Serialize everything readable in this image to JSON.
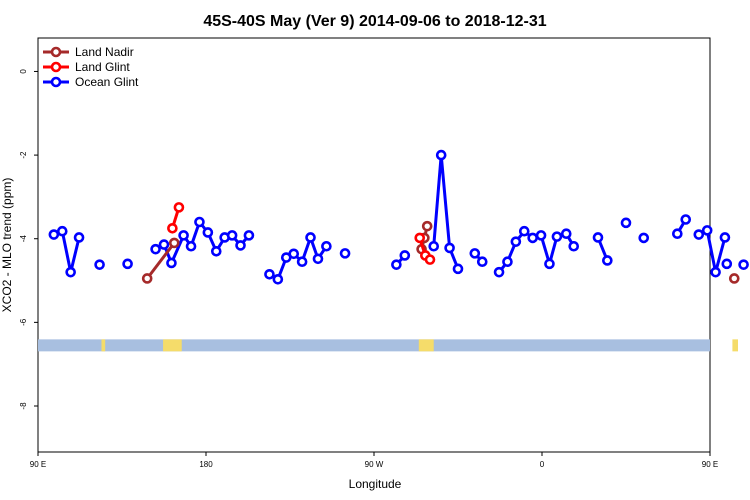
{
  "chart_data": {
    "type": "line",
    "title": "45S-40S May (Ver 9)   2014-09-06 to 2018-12-31",
    "xlabel": "Longitude",
    "ylabel": "XCO2 - MLO trend (ppm)",
    "xlim": [
      90,
      450
    ],
    "ylim": [
      -9.1,
      0.8
    ],
    "x_ticks": [
      {
        "value": 90,
        "label": "90 E"
      },
      {
        "value": 180,
        "label": "180"
      },
      {
        "value": 270,
        "label": "90 W"
      },
      {
        "value": 360,
        "label": "0"
      },
      {
        "value": 450,
        "label": "90 E"
      },
      {
        "value": 540,
        "label": "180"
      }
    ],
    "y_ticks": [
      {
        "value": 0,
        "label": "0"
      },
      {
        "value": -2,
        "label": "-2"
      },
      {
        "value": -4,
        "label": "-4"
      },
      {
        "value": -6,
        "label": "-6"
      },
      {
        "value": -8,
        "label": "-8"
      }
    ],
    "legend_position": "top-left",
    "grid": false,
    "map_strip": {
      "y": -6.55,
      "ocean_color": "#a8bfe0",
      "land_color": "#f5dc6a"
    },
    "series": [
      {
        "name": "Land Nadir",
        "color": "#a52a2a",
        "segments": [
          [
            [
              148.5,
              -4.95
            ],
            [
              163,
              -4.1
            ]
          ],
          [
            [
              295.5,
              -4.25
            ],
            [
              297,
              -3.98
            ],
            [
              298.5,
              -3.7
            ]
          ],
          [
            [
              463,
              -4.95
            ]
          ]
        ]
      },
      {
        "name": "Land Glint",
        "color": "#ff0000",
        "segments": [
          [
            [
              162,
              -3.75
            ],
            [
              165.5,
              -3.25
            ]
          ],
          [
            [
              294.5,
              -3.98
            ],
            [
              297.5,
              -4.4
            ],
            [
              300,
              -4.5
            ]
          ],
          [
            [
              478,
              -3.78
            ],
            [
              482,
              -3.25
            ]
          ]
        ]
      },
      {
        "name": "Ocean Glint",
        "color": "#0000ff",
        "segments": [
          [
            [
              98.5,
              -3.9
            ],
            [
              103,
              -3.82
            ],
            [
              107.5,
              -4.8
            ],
            [
              112,
              -3.97
            ]
          ],
          [
            [
              123,
              -4.62
            ]
          ],
          [
            [
              138,
              -4.6
            ]
          ],
          [
            [
              153,
              -4.25
            ],
            [
              157.5,
              -4.14
            ],
            [
              161.5,
              -4.58
            ],
            [
              168,
              -3.92
            ],
            [
              172,
              -4.18
            ],
            [
              176.5,
              -3.6
            ],
            [
              181,
              -3.85
            ],
            [
              185.5,
              -4.3
            ],
            [
              190,
              -3.97
            ],
            [
              194,
              -3.92
            ],
            [
              198.5,
              -4.16
            ],
            [
              203,
              -3.92
            ]
          ],
          [
            [
              214,
              -4.85
            ],
            [
              218.5,
              -4.97
            ],
            [
              223,
              -4.45
            ],
            [
              227,
              -4.36
            ],
            [
              231.5,
              -4.55
            ],
            [
              236,
              -3.97
            ],
            [
              240,
              -4.48
            ],
            [
              244.5,
              -4.18
            ]
          ],
          [
            [
              254.5,
              -4.35
            ]
          ],
          [
            [
              282,
              -4.62
            ],
            [
              286.5,
              -4.4
            ]
          ],
          [
            [
              302,
              -4.18
            ],
            [
              306,
              -2.0
            ],
            [
              310.5,
              -4.22
            ],
            [
              315,
              -4.72
            ]
          ],
          [
            [
              324,
              -4.35
            ],
            [
              328,
              -4.55
            ]
          ],
          [
            [
              337,
              -4.8
            ],
            [
              341.5,
              -4.55
            ],
            [
              346,
              -4.07
            ],
            [
              350.5,
              -3.82
            ],
            [
              355,
              -3.98
            ],
            [
              359.5,
              -3.92
            ],
            [
              364,
              -4.6
            ],
            [
              368,
              -3.95
            ]
          ],
          [
            [
              373,
              -3.88
            ],
            [
              377,
              -4.18
            ]
          ],
          [
            [
              390,
              -3.97
            ],
            [
              395,
              -4.52
            ]
          ],
          [
            [
              405,
              -3.62
            ]
          ],
          [
            [
              414.5,
              -3.98
            ]
          ],
          [
            [
              432.5,
              -3.88
            ],
            [
              437,
              -3.54
            ]
          ],
          [
            [
              444,
              -3.9
            ],
            [
              448.5,
              -3.8
            ],
            [
              453,
              -4.8
            ],
            [
              458,
              -3.97
            ]
          ],
          [
            [
              468,
              -4.62
            ]
          ],
          [
            [
              459,
              -4.6
            ]
          ],
          [
            [
              475,
              -4.25
            ],
            [
              478.5,
              -4.14
            ],
            [
              482.5,
              -4.58
            ],
            [
              486.5,
              -3.92
            ],
            [
              488.5,
              -4.18
            ],
            [
              491,
              -3.6
            ]
          ]
        ]
      }
    ]
  }
}
